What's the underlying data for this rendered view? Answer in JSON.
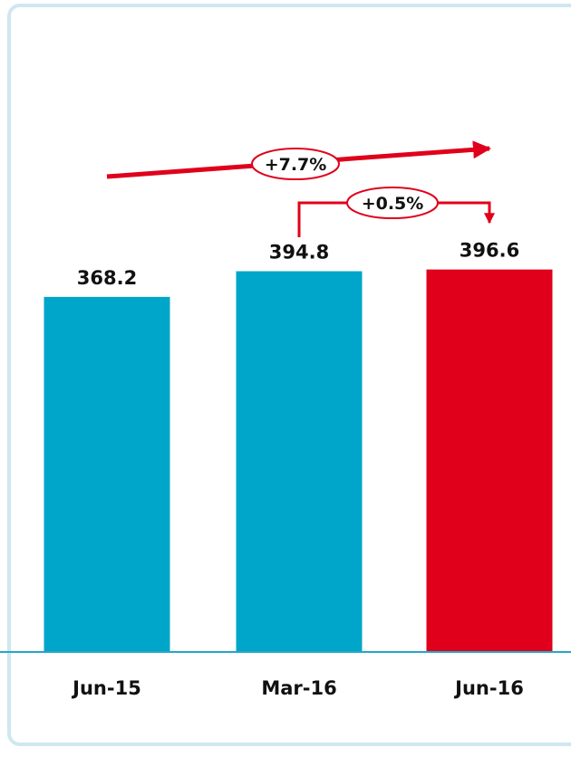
{
  "chart_data": {
    "type": "bar",
    "categories": [
      "Jun-15",
      "Mar-16",
      "Jun-16"
    ],
    "values": [
      368.2,
      394.8,
      396.6
    ],
    "value_labels": [
      "368.2",
      "394.8",
      "396.6"
    ],
    "colors": [
      "#00a6c9",
      "#00a6c9",
      "#e0001b"
    ],
    "ylim": [
      0,
      400
    ],
    "title": "",
    "xlabel": "",
    "ylabel": "",
    "grid": false,
    "annotations": [
      {
        "text": "+7.7%",
        "from": "Jun-15",
        "to": "Jun-16",
        "color": "#e0001b"
      },
      {
        "text": "+0.5%",
        "from": "Mar-16",
        "to": "Jun-16",
        "color": "#e0001b"
      }
    ]
  }
}
